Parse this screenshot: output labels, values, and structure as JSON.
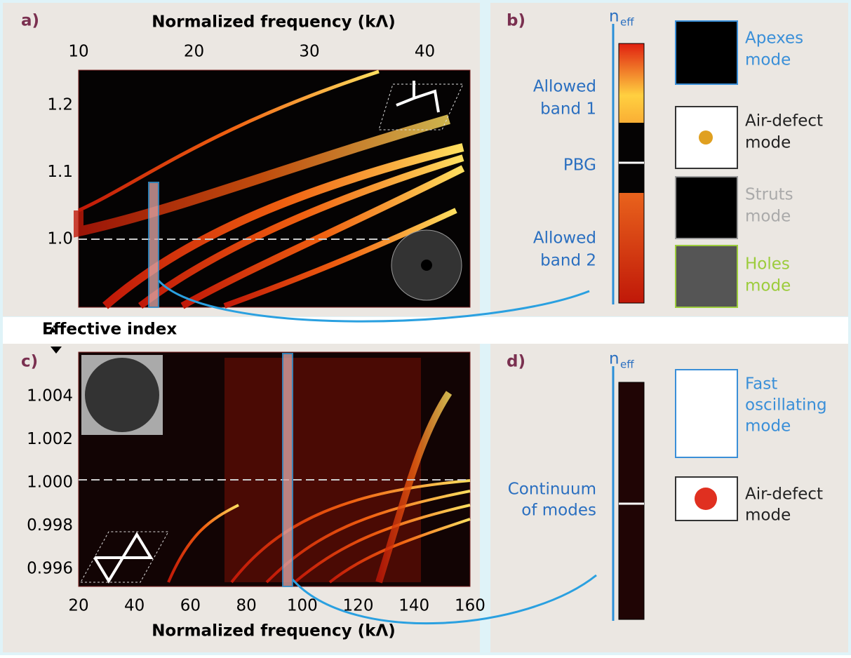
{
  "y_axis_title": "Effective index",
  "panels": {
    "a": {
      "label": "a)",
      "x_axis_title": "Normalized frequency (kΛ)",
      "x_ticks": [
        "10",
        "20",
        "30",
        "40"
      ],
      "y_ticks": [
        "1.2",
        "1.1",
        "1.0"
      ]
    },
    "b": {
      "label": "b)",
      "n_symbol": "n",
      "n_subscript": "eff",
      "annotations": [
        {
          "lines": [
            "Allowed",
            "band 1"
          ]
        },
        {
          "lines": [
            "PBG"
          ]
        },
        {
          "lines": [
            "Allowed",
            "band 2"
          ]
        }
      ],
      "modes": [
        {
          "lines": [
            "Apexes",
            "mode"
          ]
        },
        {
          "lines": [
            "Air-defect",
            "mode"
          ]
        },
        {
          "lines": [
            "Struts",
            "mode"
          ]
        },
        {
          "lines": [
            "Holes",
            "mode"
          ]
        }
      ]
    },
    "c": {
      "label": "c)",
      "x_axis_title": "Normalized frequency (kΛ)",
      "x_ticks": [
        "20",
        "40",
        "60",
        "80",
        "100",
        "120",
        "140",
        "160"
      ],
      "y_ticks": [
        "1.004",
        "1.002",
        "1.000",
        "0.998",
        "0.996"
      ]
    },
    "d": {
      "label": "d)",
      "n_symbol": "n",
      "n_subscript": "eff",
      "annotations": [
        {
          "lines": [
            "Continuum",
            "of modes"
          ]
        }
      ],
      "modes": [
        {
          "lines": [
            "Fast",
            "oscillating",
            "mode"
          ]
        },
        {
          "lines": [
            "Air-defect",
            "mode"
          ]
        }
      ]
    }
  }
}
